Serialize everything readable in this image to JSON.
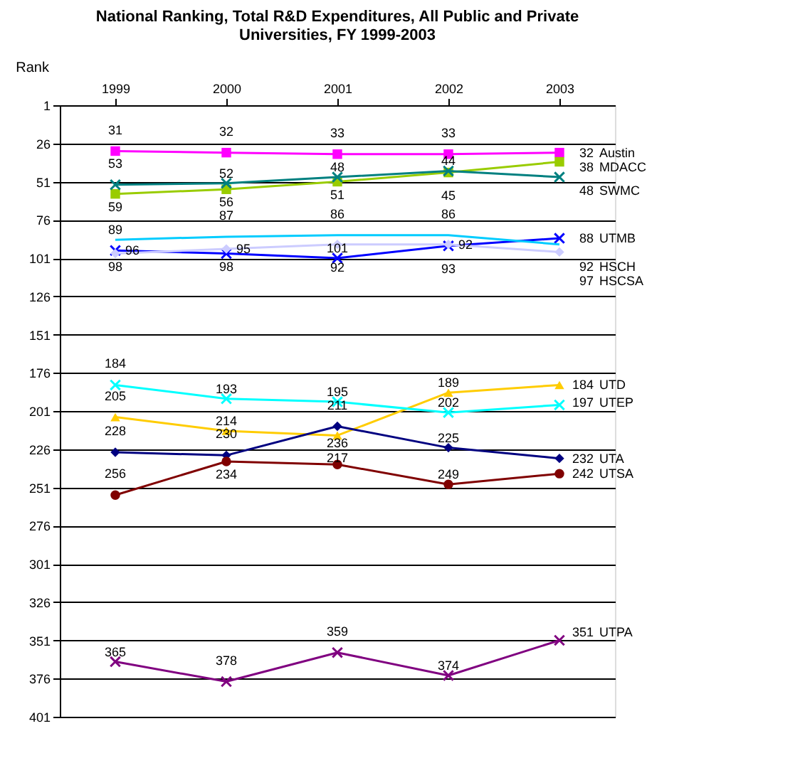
{
  "chart_data": {
    "type": "line",
    "title": "National Ranking, Total R&D Expenditures, All Public and Private Universities, FY 1999-2003",
    "ylabel": "Rank",
    "categories": [
      "1999",
      "2000",
      "2001",
      "2002",
      "2003"
    ],
    "ylim": [
      401,
      1
    ],
    "yticks": [
      1,
      26,
      51,
      76,
      101,
      126,
      151,
      176,
      201,
      226,
      251,
      276,
      301,
      326,
      351,
      376,
      401
    ],
    "grid": "y",
    "legend": false,
    "data_labels": true,
    "series": [
      {
        "name": "Austin",
        "color": "#ff00ff",
        "marker": "square",
        "values": [
          31,
          32,
          33,
          33,
          32
        ]
      },
      {
        "name": "MDACC",
        "color": "#99cc00",
        "marker": "square",
        "values": [
          59,
          56,
          51,
          45,
          38
        ]
      },
      {
        "name": "SWMC",
        "color": "#008080",
        "marker": "cross",
        "values": [
          53,
          52,
          48,
          44,
          48
        ]
      },
      {
        "name": "UTMB",
        "color": "#0000ff",
        "marker": "cross",
        "values": [
          96,
          98,
          101,
          93,
          88
        ]
      },
      {
        "name": "HSCH",
        "color": "#00ccff",
        "marker": "none",
        "values": [
          89,
          87,
          86,
          86,
          92
        ]
      },
      {
        "name": "HSCSA",
        "color": "#ccccff",
        "marker": "diamond",
        "values": [
          98,
          95,
          92,
          92,
          97
        ]
      },
      {
        "name": "UTD",
        "color": "#ffcc00",
        "marker": "triangle",
        "values": [
          205,
          214,
          217,
          189,
          184
        ]
      },
      {
        "name": "UTEP",
        "color": "#00ffff",
        "marker": "cross",
        "values": [
          184,
          193,
          195,
          202,
          197
        ]
      },
      {
        "name": "UTA",
        "color": "#000080",
        "marker": "diamond",
        "values": [
          228,
          230,
          211,
          225,
          232
        ]
      },
      {
        "name": "UTSA",
        "color": "#800000",
        "marker": "circle",
        "values": [
          256,
          234,
          236,
          249,
          242
        ]
      },
      {
        "name": "UTPA",
        "color": "#800080",
        "marker": "cross",
        "values": [
          365,
          378,
          359,
          374,
          351
        ]
      }
    ]
  }
}
